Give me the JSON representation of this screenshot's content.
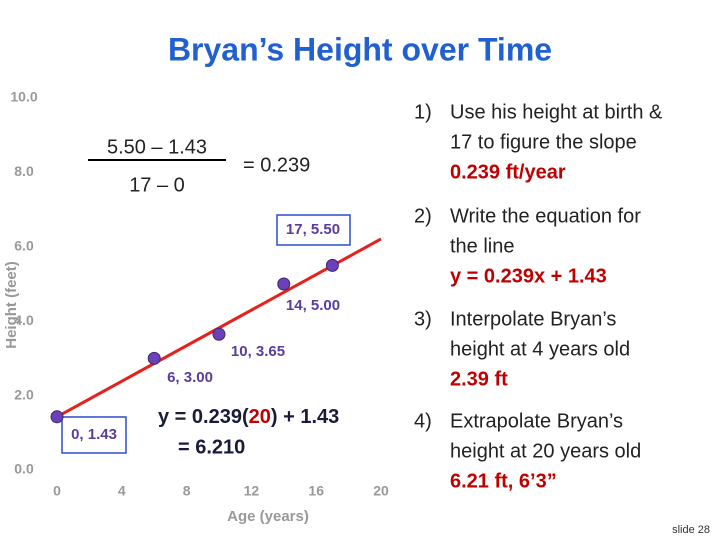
{
  "chart_data": {
    "type": "scatter",
    "title": "Bryan’s Height over Time",
    "xlabel": "Age (years)",
    "ylabel": "Height  (feet)",
    "xlim": [
      0,
      20
    ],
    "xticks": [
      0,
      4,
      8,
      12,
      16,
      20
    ],
    "ylim": [
      0,
      10
    ],
    "yticks": [
      {
        "value": 0,
        "label": "0.0"
      },
      {
        "value": 2,
        "label": "2.0"
      },
      {
        "value": 4,
        "label": "4.0"
      },
      {
        "value": 6,
        "label": "6.0"
      },
      {
        "value": 8,
        "label": "8.0"
      },
      {
        "value": 10,
        "label": "10.0"
      }
    ],
    "series": [
      {
        "color": "#6b40b8",
        "x": [
          0,
          6,
          10,
          14,
          17
        ],
        "values": [
          1.43,
          3.0,
          3.65,
          5.0,
          5.5
        ],
        "point_labels": [
          "0, 1.43",
          "6, 3.00",
          "10, 3.65",
          "14, 5.00",
          "17, 5.50"
        ]
      }
    ],
    "trendline": {
      "color": "#e8201c",
      "x": [
        0,
        20
      ],
      "values": [
        1.43,
        6.21
      ]
    },
    "slope_numerator": "5.50 – 1.43",
    "slope_denominator": "17 – 0",
    "slope_result": "= 0.239",
    "equation": [
      "y = 0.239(",
      "20",
      ") + 1.43"
    ],
    "equation_result": "= 6.210"
  },
  "steps": [
    {
      "number": "1)",
      "lines": [
        "Use his height at birth &",
        "17 to figure the slope"
      ],
      "answer": "0.239 ft/year"
    },
    {
      "number": "2)",
      "lines": [
        "Write the equation for",
        "the line"
      ],
      "answer": "y = 0.239x + 1.43"
    },
    {
      "number": "3)",
      "lines": [
        "Interpolate Bryan’s",
        "height at 4 years old"
      ],
      "answer": "2.39 ft"
    },
    {
      "number": "4)",
      "lines": [
        "Extrapolate Bryan’s",
        "height at 20 years old"
      ],
      "answer": "6.21 ft,  6’3”"
    }
  ],
  "footer": "slide 28"
}
